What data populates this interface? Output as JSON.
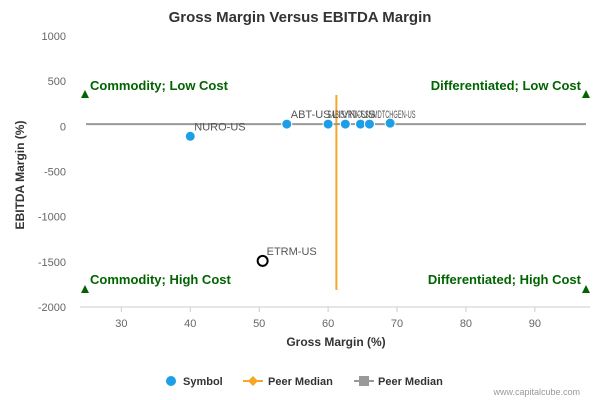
{
  "chart_data": {
    "type": "scatter",
    "title": "Gross Margin Versus EBITDA Margin",
    "xlabel": "Gross Margin (%)",
    "ylabel": "EBITDA Margin (%)",
    "xlim": [
      24,
      98
    ],
    "ylim": [
      -2000,
      1000
    ],
    "x_ticks": [
      "30",
      "40",
      "50",
      "60",
      "70",
      "80",
      "90"
    ],
    "x_tick_values": [
      30,
      40,
      50,
      60,
      70,
      80,
      90
    ],
    "y_ticks": [
      "1000",
      "500",
      "0",
      "-500",
      "-1000",
      "-1500",
      "-2000"
    ],
    "y_tick_values": [
      1000,
      500,
      0,
      -500,
      -1000,
      -1500,
      -2000
    ],
    "grid": false,
    "legend_position": "bottom",
    "series": [
      {
        "name": "Symbol",
        "color": "#1f9ee8",
        "points": [
          {
            "label": "NURO-US",
            "x": 40,
            "y": -110
          },
          {
            "label": "ABT-US",
            "x": 54,
            "y": 25
          },
          {
            "label": "LIVN-US",
            "x": 60,
            "y": 25
          },
          {
            "label": "",
            "x": 62.5,
            "y": 25
          },
          {
            "label": "",
            "x": 64.7,
            "y": 25
          },
          {
            "label": "",
            "x": 66,
            "y": 25
          },
          {
            "label": "",
            "x": 69,
            "y": 35
          },
          {
            "label": "ETRM-US",
            "x": 50.5,
            "y": -1490,
            "hollow": true
          }
        ],
        "cluster_label": "SABISYRTICSSNMDTCHGEN-US"
      },
      {
        "name": "Peer Median",
        "color": "#f5a623",
        "type": "vertical-line",
        "x": 61.2
      },
      {
        "name": "Peer Median",
        "color": "#999999",
        "type": "horizontal-line",
        "y": 25
      }
    ],
    "quadrant_labels": {
      "top_left": "Commodity; Low Cost",
      "top_right": "Differentiated; Low Cost",
      "bottom_left": "Commodity; High Cost",
      "bottom_right": "Differentiated; High Cost"
    },
    "marker_color": "#006400"
  },
  "credit": "www.capitalcube.com"
}
